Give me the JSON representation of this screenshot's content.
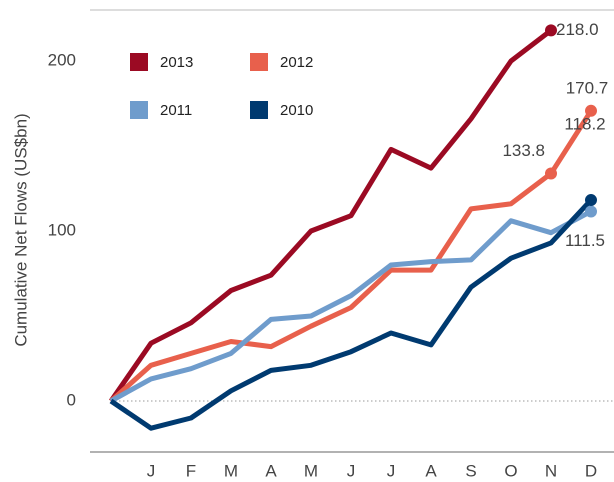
{
  "chart_data": {
    "type": "line",
    "y_label": "Cumulative Net Flows (US$bn)",
    "categories": [
      null,
      "J",
      "F",
      "M",
      "A",
      "M",
      "J",
      "J",
      "A",
      "S",
      "O",
      "N",
      "D"
    ],
    "ylim": [
      -30,
      230
    ],
    "yticks": [
      0,
      100,
      200
    ],
    "series": [
      {
        "name": "2013",
        "color": "#9b0a23",
        "values": [
          0,
          34,
          46,
          65,
          74,
          100,
          109,
          148,
          137,
          166,
          200,
          218.0,
          null
        ],
        "value_labels": [
          null,
          null,
          null,
          null,
          null,
          null,
          null,
          null,
          null,
          null,
          null,
          "218.0",
          null
        ]
      },
      {
        "name": "2012",
        "color": "#e8604c",
        "values": [
          0,
          21,
          28,
          35,
          32,
          44,
          55,
          77,
          77,
          113,
          116,
          133.8,
          170.7
        ],
        "value_labels": [
          null,
          null,
          null,
          null,
          null,
          null,
          null,
          null,
          null,
          null,
          null,
          "133.8",
          "170.7"
        ]
      },
      {
        "name": "2011",
        "color": "#6f9ccc",
        "values": [
          0,
          13,
          19,
          28,
          48,
          50,
          62,
          80,
          82,
          83,
          106,
          99,
          111.5
        ],
        "value_labels": [
          null,
          null,
          null,
          null,
          null,
          null,
          null,
          null,
          null,
          null,
          null,
          null,
          "111.5"
        ]
      },
      {
        "name": "2010",
        "color": "#003a70",
        "values": [
          0,
          -16,
          -10,
          6,
          18,
          21,
          29,
          40,
          33,
          67,
          84,
          93,
          118.2
        ],
        "value_labels": [
          null,
          null,
          null,
          null,
          null,
          null,
          null,
          null,
          null,
          null,
          null,
          null,
          "118.2"
        ]
      }
    ]
  }
}
